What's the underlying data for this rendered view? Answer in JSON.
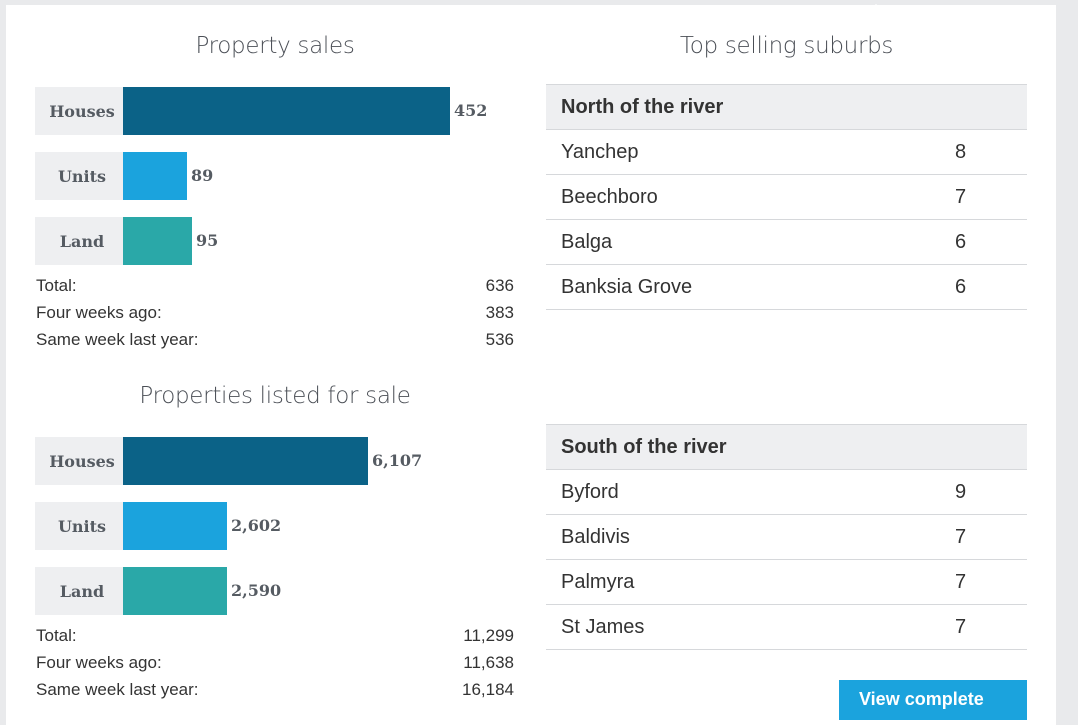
{
  "colors": {
    "houses": "#0b6287",
    "units": "#1ba3dd",
    "land": "#2aa8a8"
  },
  "property_sales": {
    "title": "Property sales",
    "stats": [
      {
        "label": "Total:",
        "value": "636"
      },
      {
        "label": "Four weeks ago:",
        "value": "383"
      },
      {
        "label": "Same week last year:",
        "value": "536"
      }
    ]
  },
  "listed_for_sale": {
    "title": "Properties listed for sale",
    "stats": [
      {
        "label": "Total:",
        "value": "11,299"
      },
      {
        "label": "Four weeks ago:",
        "value": "11,638"
      },
      {
        "label": "Same week last year:",
        "value": "16,184"
      }
    ]
  },
  "chart_data": [
    {
      "type": "bar",
      "title": "Property sales",
      "categories": [
        "Houses",
        "Units",
        "Land"
      ],
      "values": [
        452,
        89,
        95
      ],
      "value_labels": [
        "452",
        "89",
        "95"
      ],
      "xlim": [
        0,
        452
      ]
    },
    {
      "type": "bar",
      "title": "Properties listed for sale",
      "categories": [
        "Houses",
        "Units",
        "Land"
      ],
      "values": [
        6107,
        2602,
        2590
      ],
      "value_labels": [
        "6,107",
        "2,602",
        "2,590"
      ],
      "xlim": [
        0,
        8160
      ]
    }
  ],
  "top_suburbs": {
    "title": "Top selling suburbs",
    "north": {
      "heading": "North of the river",
      "rows": [
        {
          "name": "Yanchep",
          "count": "8"
        },
        {
          "name": "Beechboro",
          "count": "7"
        },
        {
          "name": "Balga",
          "count": "6"
        },
        {
          "name": "Banksia Grove",
          "count": "6"
        }
      ]
    },
    "south": {
      "heading": "South of the river",
      "rows": [
        {
          "name": "Byford",
          "count": "9"
        },
        {
          "name": "Baldivis",
          "count": "7"
        },
        {
          "name": "Palmyra",
          "count": "7"
        },
        {
          "name": "St James",
          "count": "7"
        }
      ]
    }
  },
  "view_button": {
    "label": "View complete"
  }
}
